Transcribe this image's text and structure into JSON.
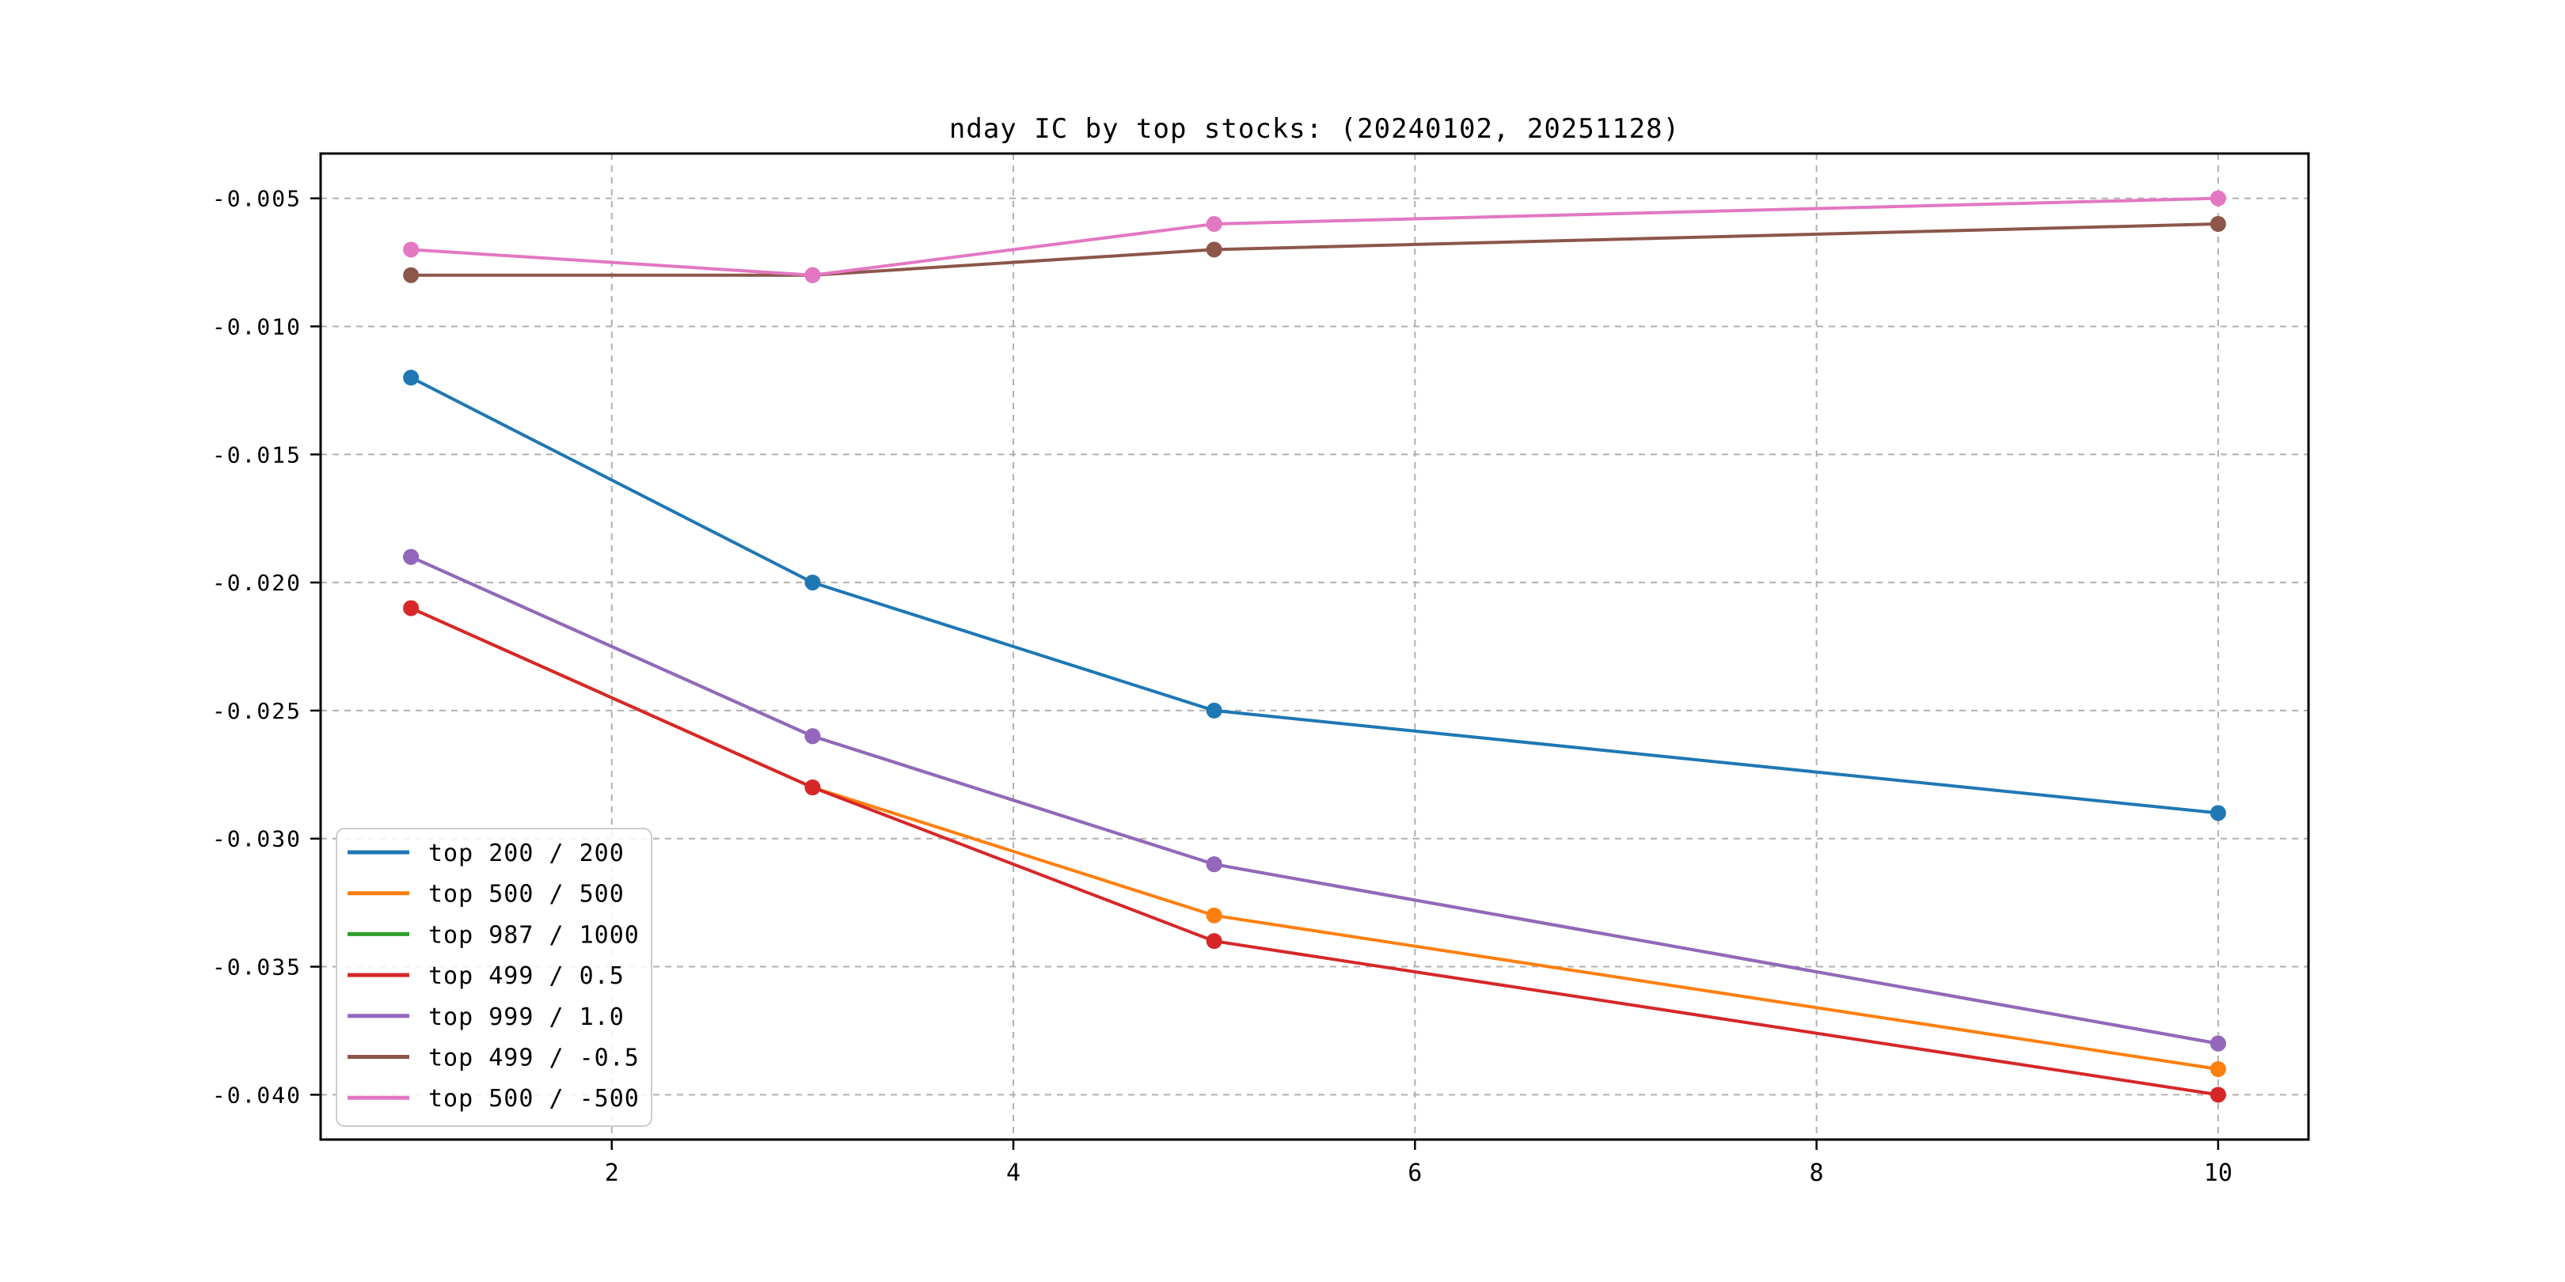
{
  "figure": {
    "background": "#ffffff"
  },
  "chart_data": {
    "type": "line",
    "title": "nday IC by top stocks: (20240102, 20251128)",
    "xlabel": "",
    "ylabel": "",
    "x": [
      1,
      3,
      5,
      10
    ],
    "xticks": [
      2,
      4,
      6,
      8,
      10
    ],
    "xtick_labels": [
      "2",
      "4",
      "6",
      "8",
      "10"
    ],
    "yticks": [
      -0.005,
      -0.01,
      -0.015,
      -0.02,
      -0.025,
      -0.03,
      -0.035,
      -0.04
    ],
    "ytick_labels": [
      "-0.005",
      "-0.010",
      "-0.015",
      "-0.020",
      "-0.025",
      "-0.030",
      "-0.035",
      "-0.040"
    ],
    "xlim": [
      0.55,
      10.45
    ],
    "ylim": [
      -0.04175,
      -0.00325
    ],
    "grid": true,
    "grid_color": "#b0b0b0",
    "axis_color": "#000000",
    "marker": "circle",
    "legend_position": "lower left",
    "legend_border_color": "#cccccc",
    "series": [
      {
        "name": "top 200 / 200",
        "color": "#1f77b4",
        "values": [
          -0.012,
          -0.02,
          -0.025,
          -0.029
        ]
      },
      {
        "name": "top 500 / 500",
        "color": "#ff7f0e",
        "values": [
          -0.021,
          -0.028,
          -0.033,
          -0.039
        ]
      },
      {
        "name": "top 987 / 1000",
        "color": "#2ca02c",
        "values": [
          -0.019,
          -0.026,
          -0.031,
          -0.038
        ]
      },
      {
        "name": "top 499 / 0.5",
        "color": "#d62728",
        "values": [
          -0.021,
          -0.028,
          -0.034,
          -0.04
        ]
      },
      {
        "name": "top 999 / 1.0",
        "color": "#9467bd",
        "values": [
          -0.019,
          -0.026,
          -0.031,
          -0.038
        ]
      },
      {
        "name": "top 499 / -0.5",
        "color": "#8c564b",
        "values": [
          -0.008,
          -0.008,
          -0.007,
          -0.006
        ]
      },
      {
        "name": "top 500 / -500",
        "color": "#e377c2",
        "values": [
          -0.007,
          -0.008,
          -0.006,
          -0.005
        ]
      }
    ]
  }
}
